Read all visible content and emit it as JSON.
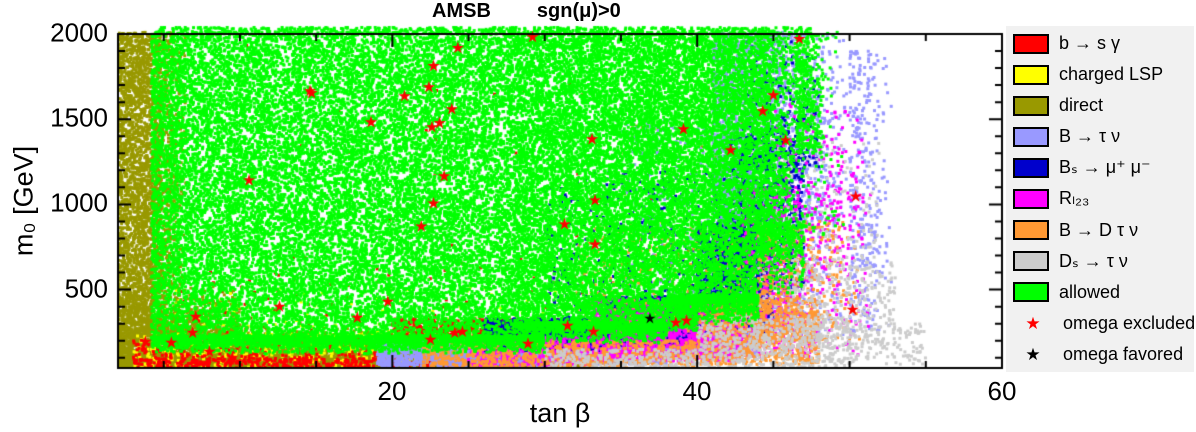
{
  "title": {
    "left": "AMSB",
    "right": "sgn(μ)>0"
  },
  "axes": {
    "x": {
      "label": "tan β",
      "tick_labels": [
        "20",
        "40",
        "60"
      ]
    },
    "y": {
      "label": "m₀ [GeV]",
      "tick_labels": [
        "2000",
        "1500",
        "1000",
        "500"
      ]
    }
  },
  "legend": {
    "background": "#f1f1f1",
    "entries": [
      {
        "marker": "box",
        "color": "#ff0000",
        "label": "b → s γ"
      },
      {
        "marker": "box",
        "color": "#ffff00",
        "label": "charged LSP"
      },
      {
        "marker": "box",
        "color": "#999900",
        "label": "direct"
      },
      {
        "marker": "box",
        "color": "#9999ff",
        "label": "B → τ ν"
      },
      {
        "marker": "box",
        "color": "#0000cc",
        "label": "Bₛ → μ⁺ μ⁻"
      },
      {
        "marker": "box",
        "color": "#ff00ff",
        "label": "Rₗ₂₃"
      },
      {
        "marker": "box",
        "color": "#ff9933",
        "label": "B → D τ ν"
      },
      {
        "marker": "box",
        "color": "#cccccc",
        "label": "Dₛ → τ ν"
      },
      {
        "marker": "box",
        "color": "#00ff00",
        "label": "allowed"
      },
      {
        "marker": "star",
        "color": "#ff0000",
        "glyph": "★",
        "label": "omega excluded"
      },
      {
        "marker": "star",
        "color": "#000000",
        "glyph": "★",
        "label": "omega favored"
      }
    ]
  },
  "chart_data": {
    "type": "scatter",
    "title": "AMSB  sgn(μ)>0",
    "xlabel": "tan β",
    "ylabel": "m₀ [GeV]",
    "xlim": [
      2,
      60
    ],
    "ylim": [
      40,
      2000
    ],
    "x_major_ticks": [
      20,
      40,
      60
    ],
    "x_minor_step": 5,
    "y_major_ticks": [
      500,
      1000,
      1500,
      2000
    ],
    "y_minor_step": 100,
    "grid": false,
    "legend_position": "right",
    "series": [
      {
        "name": "direct",
        "color": "#999900",
        "marker": "square",
        "regions": [
          [
            2,
            4.8,
            40,
            2010,
            3200,
            ""
          ],
          [
            4.8,
            6.6,
            40,
            2010,
            700,
            "r"
          ],
          [
            2,
            26,
            40,
            280,
            5000,
            "t"
          ],
          [
            2,
            10,
            230,
            520,
            700,
            "t"
          ],
          [
            26,
            34,
            40,
            180,
            900,
            "r"
          ],
          [
            34,
            47,
            200,
            1600,
            90,
            ""
          ]
        ]
      },
      {
        "name": "charged LSP",
        "color": "#ffff00",
        "marker": "square",
        "regions": [
          [
            3,
            26,
            40,
            240,
            550,
            ""
          ],
          [
            26,
            36,
            100,
            310,
            260,
            ""
          ],
          [
            5,
            35,
            240,
            520,
            130,
            ""
          ]
        ]
      },
      {
        "name": "b → s γ",
        "color": "#ff0000",
        "marker": "square",
        "regions": [
          [
            3,
            26,
            40,
            95,
            350,
            ""
          ],
          [
            3,
            20,
            60,
            210,
            300,
            ""
          ],
          [
            20,
            31,
            150,
            330,
            1000,
            ""
          ],
          [
            31,
            36,
            160,
            310,
            260,
            "r"
          ],
          [
            5,
            40,
            210,
            700,
            120,
            ""
          ],
          [
            10,
            45,
            700,
            2000,
            40,
            ""
          ]
        ]
      },
      {
        "name": "B → τ ν",
        "color": "#9999ff",
        "marker": "square",
        "regions": [
          [
            19,
            30,
            50,
            210,
            1600,
            ""
          ],
          [
            30,
            38,
            60,
            300,
            1600,
            ""
          ],
          [
            38,
            44,
            100,
            450,
            1500,
            ""
          ],
          [
            41,
            50,
            200,
            2010,
            3500,
            "r"
          ],
          [
            50,
            53,
            250,
            1900,
            350,
            "r"
          ],
          [
            35,
            44,
            300,
            1500,
            600,
            ""
          ]
        ]
      },
      {
        "name": "Bs → μ+ μ-",
        "color": "#0000cc",
        "marker": "square",
        "regions": [
          [
            26,
            34,
            140,
            330,
            900,
            ""
          ],
          [
            34,
            40,
            170,
            460,
            1100,
            ""
          ],
          [
            40,
            45,
            250,
            900,
            1300,
            ""
          ],
          [
            42,
            47,
            500,
            1400,
            700,
            ""
          ],
          [
            43,
            48,
            1200,
            2000,
            250,
            "t"
          ],
          [
            30,
            42,
            300,
            1200,
            500,
            ""
          ]
        ]
      },
      {
        "name": "Rl23",
        "color": "#ff00ff",
        "marker": "square",
        "regions": [
          [
            25,
            33,
            50,
            220,
            500,
            ""
          ],
          [
            33,
            43,
            80,
            450,
            1800,
            ""
          ],
          [
            43,
            52,
            100,
            1100,
            700,
            "r"
          ],
          [
            45,
            51,
            900,
            1600,
            120,
            ""
          ]
        ]
      },
      {
        "name": "B → D τ ν",
        "color": "#ff9933",
        "marker": "square",
        "regions": [
          [
            22,
            40,
            40,
            200,
            800,
            ""
          ],
          [
            40,
            48,
            60,
            450,
            900,
            ""
          ],
          [
            44,
            51,
            200,
            900,
            450,
            "r"
          ],
          [
            32,
            44,
            250,
            900,
            400,
            ""
          ]
        ]
      },
      {
        "name": "Ds → τ ν",
        "color": "#cccccc",
        "marker": "square",
        "regions": [
          [
            30,
            40,
            40,
            150,
            250,
            ""
          ],
          [
            40,
            50,
            40,
            350,
            600,
            ""
          ],
          [
            46,
            53,
            150,
            700,
            300,
            ""
          ],
          [
            44,
            52,
            400,
            1400,
            200,
            ""
          ],
          [
            50,
            55,
            60,
            300,
            120,
            ""
          ]
        ]
      },
      {
        "name": "allowed",
        "color": "#00ff00",
        "marker": "square",
        "regions": [
          [
            4.2,
            28,
            180,
            2010,
            18000,
            ""
          ],
          [
            28,
            40,
            260,
            2010,
            11000,
            ""
          ],
          [
            40,
            44,
            420,
            2010,
            3400,
            ""
          ],
          [
            44,
            46.5,
            700,
            2010,
            900,
            "r"
          ],
          [
            46.5,
            48.5,
            1300,
            2010,
            380,
            "r"
          ],
          [
            4.2,
            30,
            120,
            230,
            2000,
            "b"
          ],
          [
            28,
            38,
            180,
            310,
            800,
            "b"
          ],
          [
            38,
            44,
            280,
            470,
            650,
            "b"
          ],
          [
            44,
            47,
            450,
            900,
            320,
            "b"
          ],
          [
            44,
            50,
            800,
            2010,
            420,
            "r"
          ],
          [
            4.5,
            47.5,
            2005,
            2040,
            600,
            ""
          ]
        ]
      }
    ],
    "omega_excluded_stars": [
      [
        14.7,
        1653
      ],
      [
        29.2,
        1982
      ],
      [
        24.3,
        1918
      ],
      [
        22.7,
        1812
      ],
      [
        22.4,
        1688
      ],
      [
        20.8,
        1635
      ],
      [
        23.9,
        1559
      ],
      [
        23.1,
        1477
      ],
      [
        22.6,
        1453
      ],
      [
        18.6,
        1482
      ],
      [
        14.6,
        1665
      ],
      [
        33.1,
        1382
      ],
      [
        23.4,
        1165
      ],
      [
        22.7,
        1006
      ],
      [
        10.6,
        1141
      ],
      [
        33.3,
        1024
      ],
      [
        21.9,
        871
      ],
      [
        45.0,
        1641
      ],
      [
        44.3,
        1547
      ],
      [
        45.8,
        1376
      ],
      [
        42.2,
        1318
      ],
      [
        50.4,
        1047
      ],
      [
        39.1,
        1441
      ],
      [
        22.5,
        206
      ],
      [
        24.1,
        247
      ],
      [
        28.9,
        182
      ],
      [
        31.5,
        288
      ],
      [
        33.2,
        253
      ],
      [
        38.6,
        306
      ],
      [
        39.3,
        318
      ],
      [
        3.8,
        194
      ],
      [
        5.5,
        188
      ],
      [
        6.9,
        247
      ],
      [
        7.1,
        341
      ],
      [
        8.0,
        135
      ],
      [
        9.5,
        100
      ],
      [
        12.6,
        400
      ],
      [
        19.7,
        429
      ],
      [
        17.7,
        335
      ],
      [
        46.7,
        1971
      ],
      [
        50.2,
        382
      ],
      [
        33.3,
        765
      ],
      [
        31.3,
        883
      ],
      [
        24.6,
        253
      ]
    ],
    "omega_favored_stars": [
      [
        36.9,
        330
      ]
    ]
  }
}
